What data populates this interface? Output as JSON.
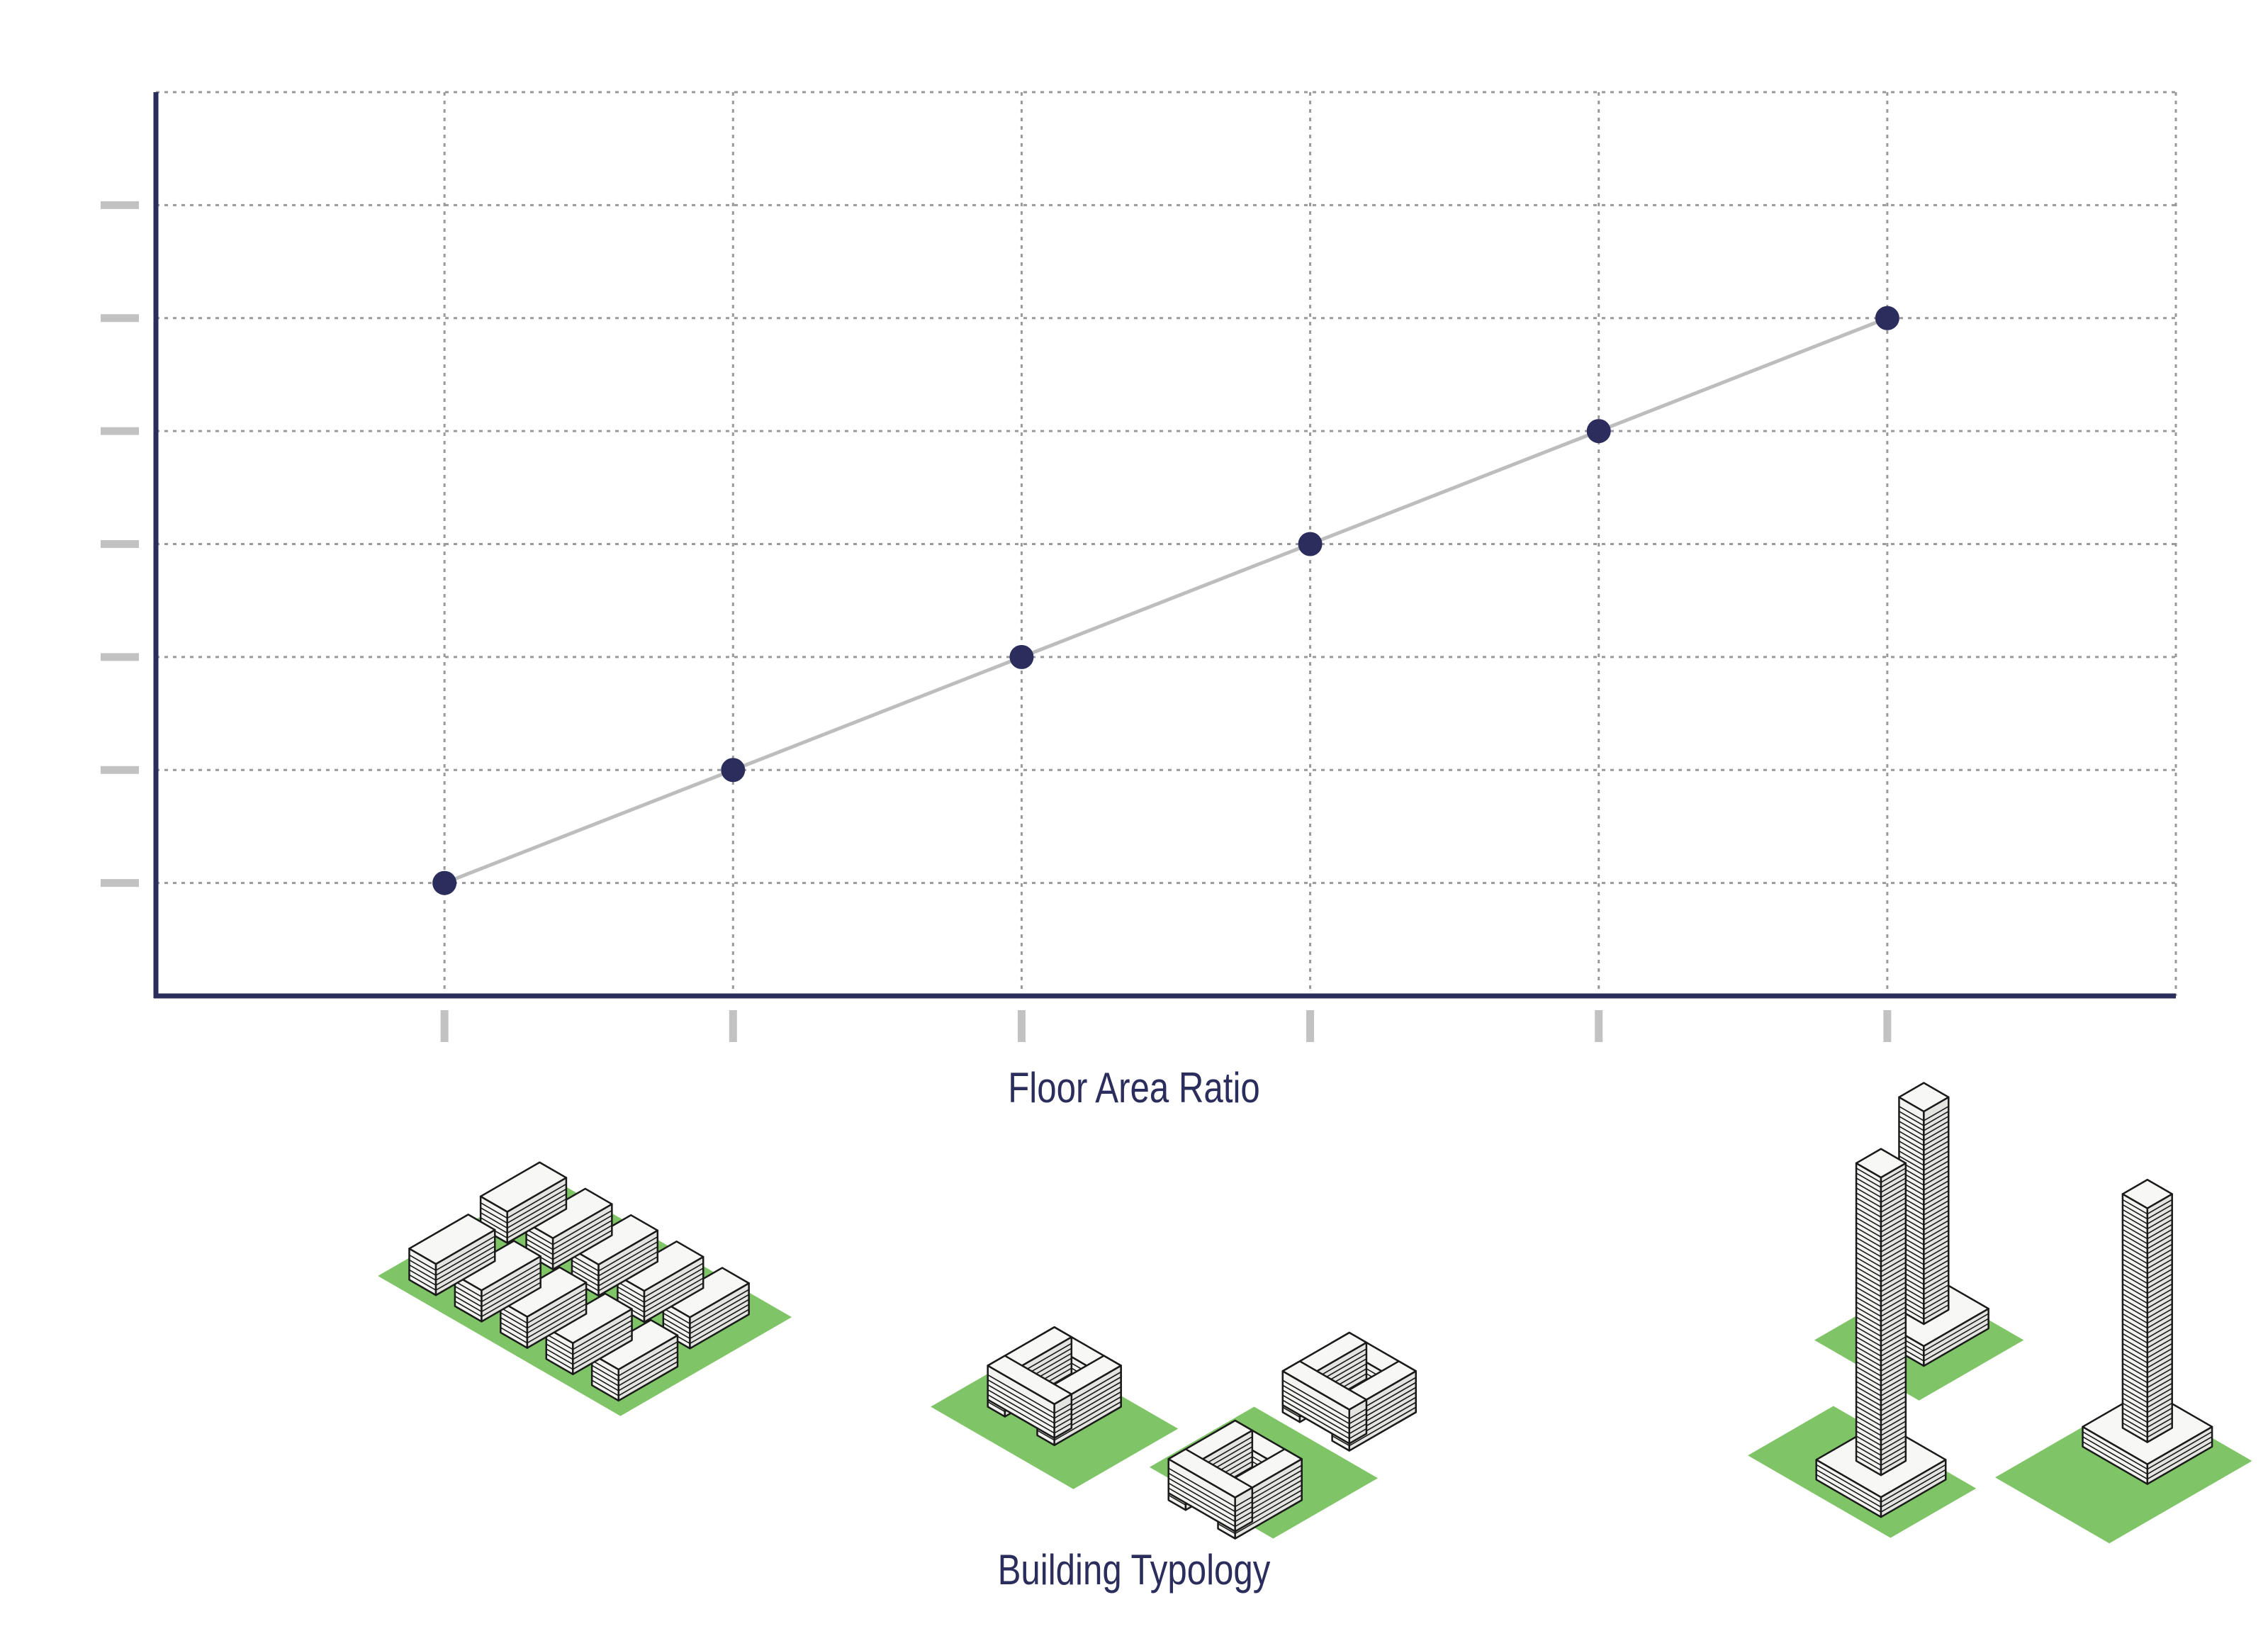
{
  "chart_data": {
    "type": "line",
    "title": "",
    "xlabel": "Floor Area Ratio",
    "ylabel": "",
    "x": [
      1,
      2,
      3,
      4,
      5,
      6
    ],
    "series": [
      {
        "values": [
          1,
          2,
          3,
          4,
          5,
          6
        ]
      }
    ],
    "xlim": [
      0,
      7
    ],
    "ylim": [
      0,
      8
    ],
    "x_ticks": [
      1,
      2,
      3,
      4,
      5,
      6
    ],
    "y_ticks": [
      1,
      2,
      3,
      4,
      5,
      6,
      7
    ],
    "grid": true,
    "legend": "none"
  },
  "typology": {
    "label": "Building Typology",
    "items": [
      "low-rise-slab-blocks",
      "mid-rise-courtyard-blocks",
      "high-rise-towers-on-podiums"
    ]
  },
  "colors": {
    "axis": "#2b2d5c",
    "marker": "#2b2d5c",
    "line": "#bdbdbd",
    "grid": "#9a9a9a",
    "tick": "#c2c2c2",
    "ground": "#7fc466",
    "building_face": "#f3f3f1",
    "building_edge": "#1a1a1a"
  }
}
